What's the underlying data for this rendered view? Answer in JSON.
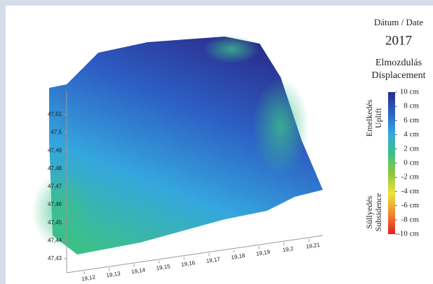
{
  "chart_data": {
    "type": "surface3d",
    "date_label": "Dátum / Date",
    "date": "2017",
    "legend_title": [
      "Elmozdulás",
      "Displacement"
    ],
    "uplift_label": [
      "Emelkedés",
      "Uplift"
    ],
    "subsidence_label": [
      "Süllyedés",
      "Subsidence"
    ],
    "ylim": [
      47.43,
      47.51
    ],
    "yticks": [
      {
        "value": 47.43,
        "label": "47,43"
      },
      {
        "value": 47.44,
        "label": "47,44"
      },
      {
        "value": 47.45,
        "label": "47,45"
      },
      {
        "value": 47.46,
        "label": "47,46"
      },
      {
        "value": 47.47,
        "label": "47,47"
      },
      {
        "value": 47.48,
        "label": "47,48"
      },
      {
        "value": 47.49,
        "label": "47,49"
      },
      {
        "value": 47.5,
        "label": "47,5"
      },
      {
        "value": 47.51,
        "label": "47,51"
      }
    ],
    "xlim": [
      19.12,
      19.21
    ],
    "xticks": [
      {
        "value": 19.12,
        "label": "19,12"
      },
      {
        "value": 19.13,
        "label": "19,13"
      },
      {
        "value": 19.14,
        "label": "19,14"
      },
      {
        "value": 19.15,
        "label": "19,15"
      },
      {
        "value": 19.16,
        "label": "19,16"
      },
      {
        "value": 19.17,
        "label": "19,17"
      },
      {
        "value": 19.18,
        "label": "19,18"
      },
      {
        "value": 19.19,
        "label": "19,19"
      },
      {
        "value": 19.2,
        "label": "19,2"
      },
      {
        "value": 19.21,
        "label": "19,21"
      }
    ],
    "clim": [
      -10,
      10
    ],
    "cticks": [
      {
        "value": 10,
        "label": "10 cm"
      },
      {
        "value": 8,
        "label": "8 cm"
      },
      {
        "value": 6,
        "label": "6 cm"
      },
      {
        "value": 4,
        "label": "4 cm"
      },
      {
        "value": 2,
        "label": "2 cm"
      },
      {
        "value": 0,
        "label": "0 cm"
      },
      {
        "value": -2,
        "label": "-2 cm"
      },
      {
        "value": -4,
        "label": "-4 cm"
      },
      {
        "value": -6,
        "label": "-6 cm"
      },
      {
        "value": -8,
        "label": "-8 cm"
      },
      {
        "value": -10,
        "label": "-10 cm"
      }
    ],
    "colormap": [
      "#2a2c8c",
      "#2d5fc4",
      "#35a6de",
      "#3cc08a",
      "#8cc640",
      "#efe23c",
      "#f08a2c",
      "#e01f22"
    ]
  }
}
